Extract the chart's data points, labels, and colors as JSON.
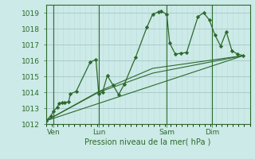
{
  "bg_color": "#cceae7",
  "grid_major_color": "#aacccc",
  "grid_minor_color": "#bbdddd",
  "line_color": "#2d6a2d",
  "marker_color": "#2d6a2d",
  "xlabel_text": "Pression niveau de la mer( hPa )",
  "ylim": [
    1012.0,
    1019.5
  ],
  "yticks": [
    1012,
    1013,
    1014,
    1015,
    1016,
    1017,
    1018,
    1019
  ],
  "xlim": [
    0,
    216
  ],
  "xtick_labels": [
    "Ven",
    "Lun",
    "Sam",
    "Dim"
  ],
  "xtick_positions": [
    8,
    56,
    128,
    176
  ],
  "vline_positions": [
    8,
    56,
    128,
    176
  ],
  "series0_x": [
    0,
    5,
    8,
    12,
    14,
    17,
    20,
    24,
    26,
    32,
    47,
    53,
    56,
    60,
    65,
    71,
    77,
    83,
    95,
    107,
    113,
    119,
    122,
    128,
    131,
    137,
    143,
    149,
    161,
    167,
    173,
    179,
    185,
    191,
    197,
    203,
    209
  ],
  "series0_y": [
    1012.2,
    1012.5,
    1012.8,
    1013.05,
    1013.3,
    1013.35,
    1013.35,
    1013.4,
    1013.9,
    1014.05,
    1015.9,
    1016.05,
    1013.9,
    1014.0,
    1015.05,
    1014.45,
    1013.85,
    1014.5,
    1016.2,
    1018.1,
    1018.9,
    1019.05,
    1019.1,
    1018.9,
    1017.1,
    1016.4,
    1016.45,
    1016.5,
    1018.75,
    1019.0,
    1018.55,
    1017.6,
    1016.9,
    1017.8,
    1016.6,
    1016.4,
    1016.3
  ],
  "series1_x": [
    0,
    209
  ],
  "series1_y": [
    1012.2,
    1016.3
  ],
  "series2_x": [
    0,
    56,
    113,
    209
  ],
  "series2_y": [
    1012.2,
    1014.0,
    1015.2,
    1016.3
  ],
  "series3_x": [
    0,
    56,
    113,
    209
  ],
  "series3_y": [
    1012.2,
    1014.05,
    1015.5,
    1016.3
  ]
}
